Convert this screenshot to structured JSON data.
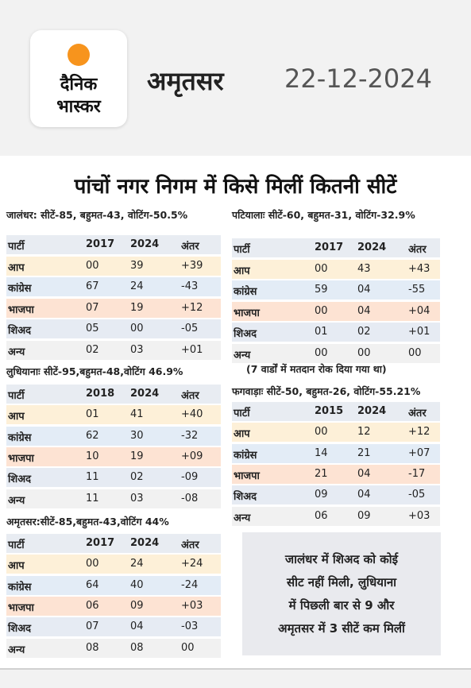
{
  "header": {
    "logo": [
      "दैनिक",
      "भास्कर"
    ],
    "city": "अमृतसर",
    "date": "22-12-2024"
  },
  "title": "पांचों नगर निगम में किसे मिलीं कितनी सीटें",
  "tables": [
    {
      "heading": "जालंधर: सीटें-85, बहुमत-43, वोटिंग-50.5%",
      "columns": [
        "पार्टी",
        "2017",
        "2024",
        "अंतर"
      ],
      "rows": [
        [
          "आप",
          "00",
          "39",
          "+39"
        ],
        [
          "कांग्रेस",
          "67",
          "24",
          "-43"
        ],
        [
          "भाजपा",
          "07",
          "19",
          "+12"
        ],
        [
          "शिअद",
          "05",
          "00",
          "-05"
        ],
        [
          "अन्य",
          "02",
          "03",
          "+01"
        ]
      ]
    },
    {
      "heading": "लुधियानाः सीटें-95,बहुमत-48,वोटिंग 46.9%",
      "columns": [
        "पार्टी",
        "2018",
        "2024",
        "अंतर"
      ],
      "rows": [
        [
          "आप",
          "01",
          "41",
          "+40"
        ],
        [
          "कांग्रेस",
          "62",
          "30",
          "-32"
        ],
        [
          "भाजपा",
          "10",
          "19",
          "+09"
        ],
        [
          "शिअद",
          "11",
          "02",
          "-09"
        ],
        [
          "अन्य",
          "11",
          "03",
          "-08"
        ]
      ]
    },
    {
      "heading": "अमृतसर:सीटें-85,बहुमत-43,वोटिंग 44%",
      "columns": [
        "पार्टी",
        "2017",
        "2024",
        "अंतर"
      ],
      "rows": [
        [
          "आप",
          "00",
          "24",
          "+24"
        ],
        [
          "कांग्रेस",
          "64",
          "40",
          "-24"
        ],
        [
          "भाजपा",
          "06",
          "09",
          "+03"
        ],
        [
          "शिअद",
          "07",
          "04",
          "-03"
        ],
        [
          "अन्य",
          "08",
          "08",
          "00"
        ]
      ]
    },
    {
      "heading": "पटियालाः सीटें-60, बहुमत-31, वोटिंग-32.9%",
      "columns": [
        "पार्टी",
        "2017",
        "2024",
        "अंतर"
      ],
      "rows": [
        [
          "आप",
          "00",
          "43",
          "+43"
        ],
        [
          "कांग्रेस",
          "59",
          "04",
          "-55"
        ],
        [
          "भाजपा",
          "00",
          "04",
          "+04"
        ],
        [
          "शिअद",
          "01",
          "02",
          "+01"
        ],
        [
          "अन्य",
          "00",
          "00",
          "00"
        ]
      ],
      "note": "(7 वार्डों में मतदान रोक दिया गया था)"
    },
    {
      "heading": "फगवाड़ाः सीटें-50, बहुमत-26, वोटिंग-55.21%",
      "columns": [
        "पार्टी",
        "2015",
        "2024",
        "अंतर"
      ],
      "rows": [
        [
          "आप",
          "00",
          "12",
          "+12"
        ],
        [
          "कांग्रेस",
          "14",
          "21",
          "+07"
        ],
        [
          "भाजपा",
          "21",
          "04",
          "-17"
        ],
        [
          "शिअद",
          "09",
          "04",
          "-05"
        ],
        [
          "अन्य",
          "06",
          "09",
          "+03"
        ]
      ]
    }
  ],
  "summary": [
    "जालंधर में शिअद को कोई",
    "सीट नहीं मिली, लुधियाना",
    "में पिछली बार से 9 और",
    "अमृतसर में 3 सीटें कम मिलीं"
  ]
}
